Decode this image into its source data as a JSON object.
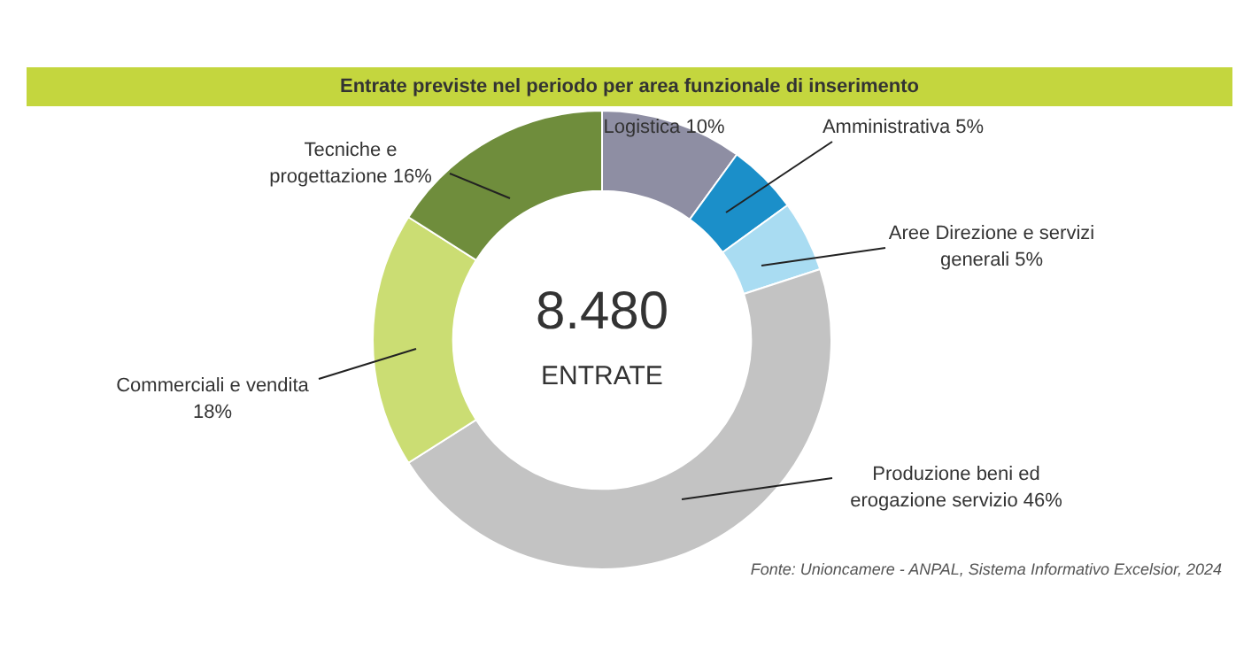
{
  "chart_data": {
    "type": "donut",
    "title": "Entrate previste nel periodo per area funzionale di inserimento",
    "categories": [
      "Logistica",
      "Amministrativa",
      "Aree Direzione e servizi generali",
      "Produzione beni ed erogazione servizio",
      "Commerciali e vendita",
      "Tecniche e progettazione"
    ],
    "values": [
      10,
      5,
      5,
      46,
      18,
      16
    ],
    "value_labels": [
      "10%",
      "5%",
      "5%",
      "46%",
      "18%",
      "16%"
    ],
    "colors": [
      "#8e8ea3",
      "#1b8fc9",
      "#a9dcf2",
      "#c3c3c3",
      "#cbdd73",
      "#6f8d3c"
    ],
    "legend": false,
    "annotations": [
      "8.480",
      "ENTRATE",
      "Fonte: Unioncamere - ANPAL, Sistema Informativo Excelsior, 2024"
    ]
  }
}
